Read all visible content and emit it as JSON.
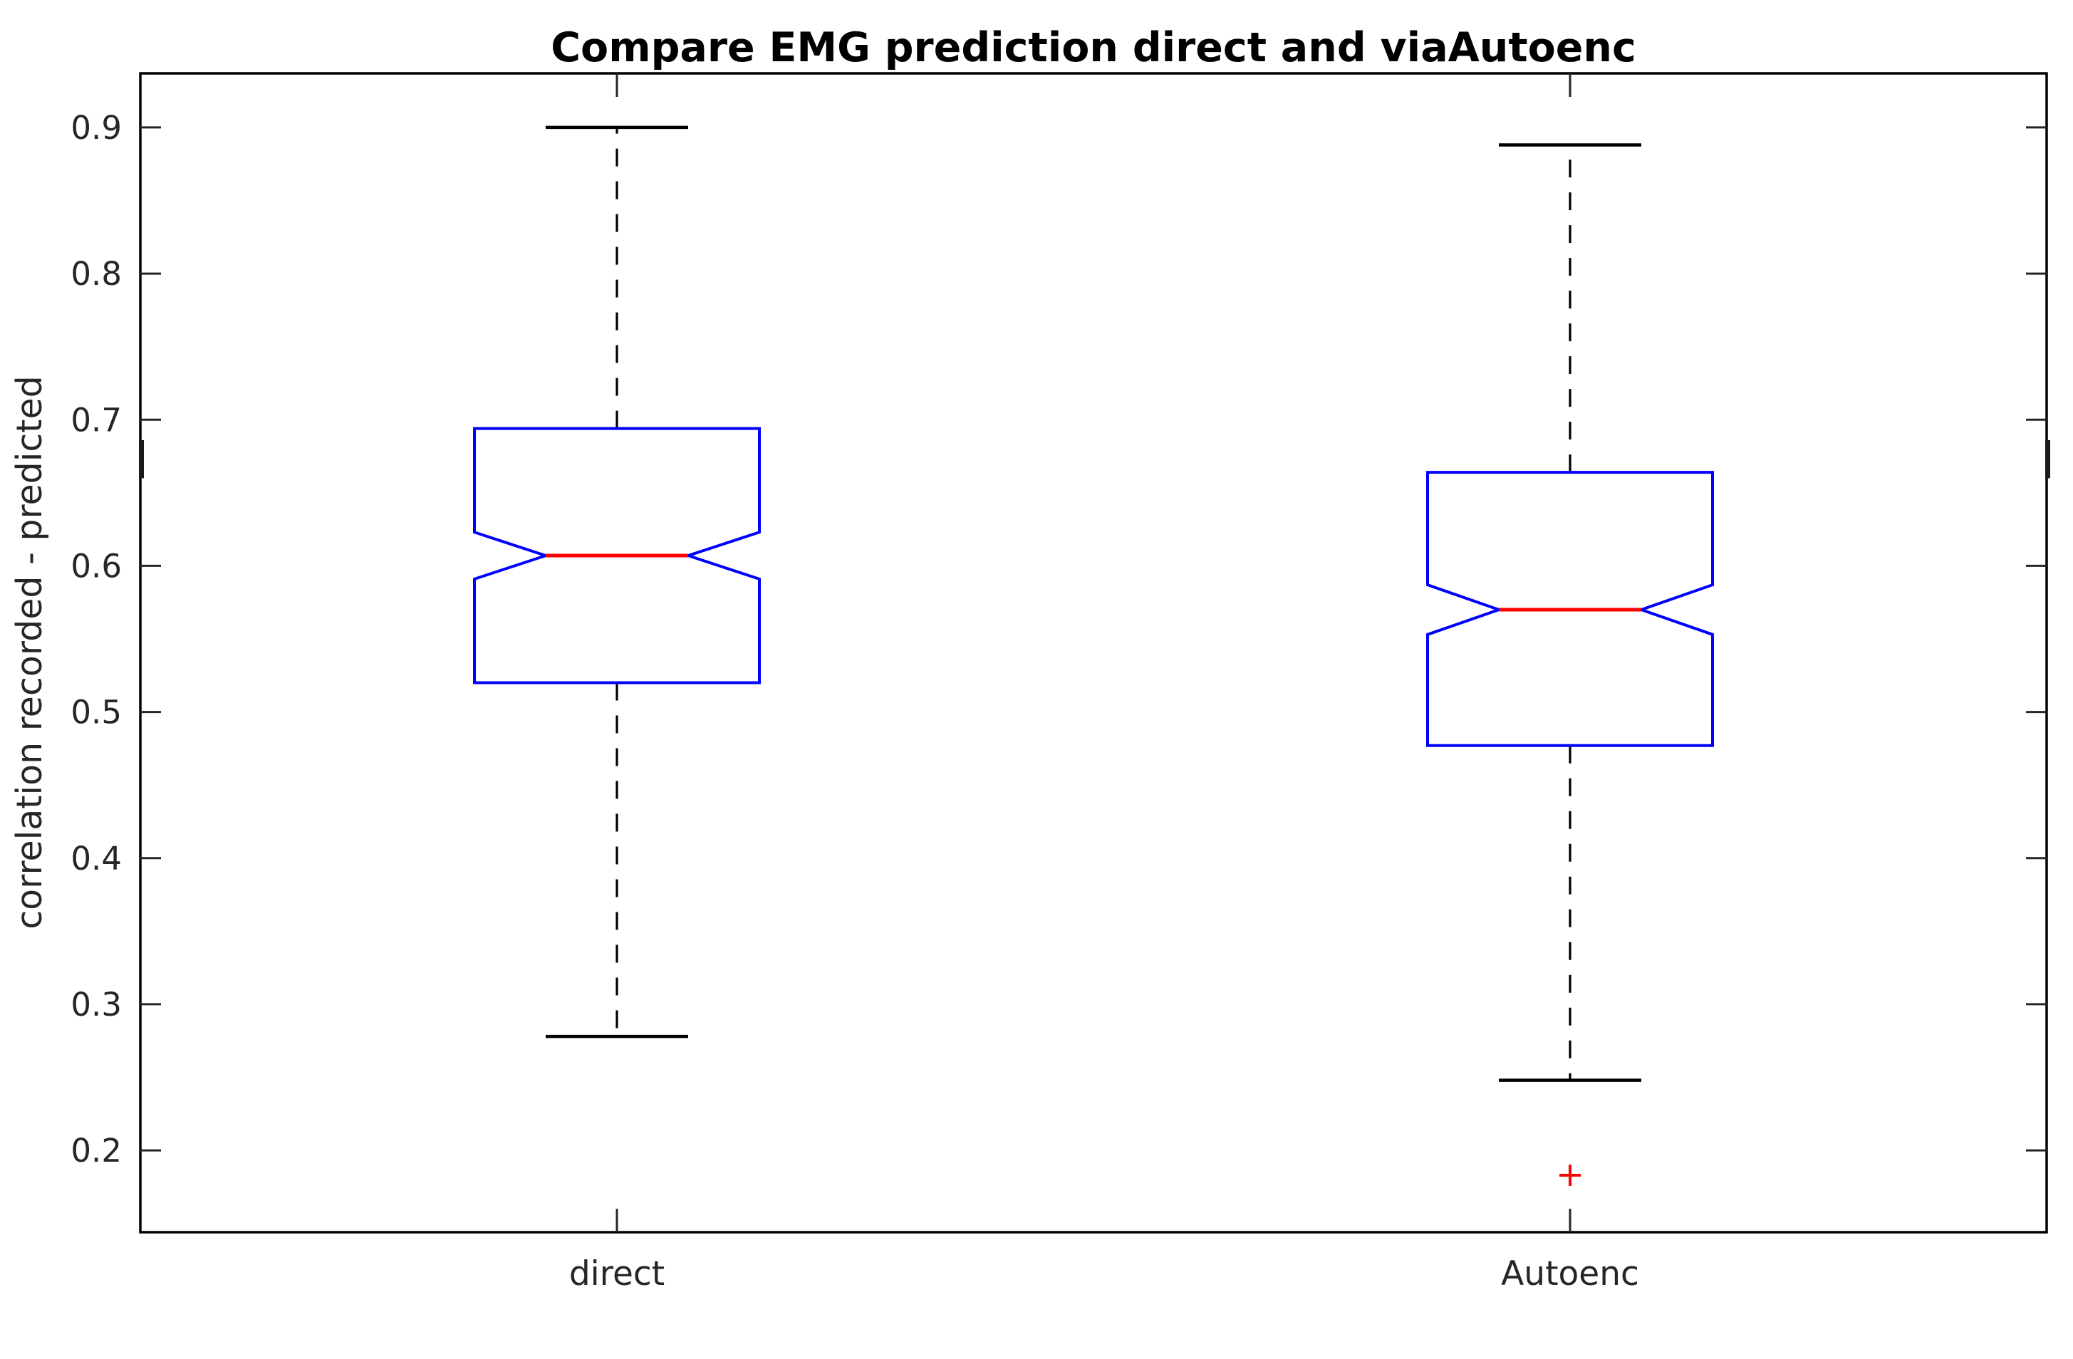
{
  "figure": {
    "title": "Compare EMG prediction direct and viaAutoenc",
    "background": "#ffffff"
  },
  "chart_data": {
    "type": "boxplot",
    "title": "Compare EMG prediction direct and viaAutoenc",
    "xlabel": "",
    "ylabel": "correlation recorded - predicted",
    "categories": [
      "direct",
      "Autoenc"
    ],
    "ylim": [
      0.144,
      0.937
    ],
    "yticks": [
      0.2,
      0.3,
      0.4,
      0.5,
      0.6,
      0.7,
      0.8,
      0.9
    ],
    "ytick_labels": [
      "0.2",
      "0.3",
      "0.4",
      "0.5",
      "0.6",
      "0.7",
      "0.8",
      "0.9"
    ],
    "grid": false,
    "notched": true,
    "legend": "none",
    "series": [
      {
        "name": "direct",
        "whisker_low": 0.278,
        "q1": 0.52,
        "median": 0.607,
        "q3": 0.694,
        "whisker_high": 0.9,
        "notch_low": 0.591,
        "notch_high": 0.623,
        "outliers": []
      },
      {
        "name": "Autoenc",
        "whisker_low": 0.248,
        "q1": 0.477,
        "median": 0.57,
        "q3": 0.664,
        "whisker_high": 0.888,
        "notch_low": 0.553,
        "notch_high": 0.587,
        "outliers": [
          0.183
        ]
      }
    ],
    "spine_artifact_marks": {
      "y_range": [
        0.66,
        0.686
      ],
      "sides": [
        "left",
        "right"
      ]
    },
    "colors": {
      "box": "#0000ff",
      "median": "#ff0000",
      "whisker": "#000000",
      "cap": "#000000",
      "outlier": "#ff0000",
      "axis": "#000000",
      "tick_label": "#262626",
      "title": "#000000"
    }
  }
}
